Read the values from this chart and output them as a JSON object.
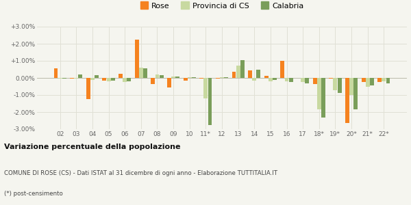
{
  "categories": [
    "02",
    "03",
    "04",
    "05",
    "06",
    "07",
    "08",
    "09",
    "10",
    "11*",
    "12",
    "13",
    "14",
    "15",
    "16",
    "17",
    "18*",
    "19*",
    "20*",
    "21*",
    "22*"
  ],
  "rose": [
    0.55,
    -0.02,
    -1.25,
    -0.15,
    0.25,
    2.25,
    -0.35,
    -0.55,
    -0.15,
    -0.05,
    -0.05,
    0.35,
    0.45,
    0.12,
    1.0,
    0.0,
    -0.35,
    -0.05,
    -2.65,
    -0.25,
    -0.25
  ],
  "provincia": [
    -0.05,
    -0.02,
    -0.1,
    -0.2,
    -0.25,
    0.62,
    0.2,
    0.1,
    0.05,
    -1.2,
    0.05,
    0.72,
    -0.15,
    -0.2,
    -0.2,
    -0.25,
    -1.82,
    -0.7,
    -1.0,
    -0.5,
    -0.2
  ],
  "calabria": [
    -0.05,
    0.2,
    0.15,
    -0.15,
    -0.2,
    0.55,
    0.15,
    0.1,
    0.05,
    -2.75,
    0.05,
    1.05,
    0.5,
    -0.1,
    -0.25,
    -0.3,
    -2.3,
    -0.88,
    -1.85,
    -0.45,
    -0.3
  ],
  "rose_color": "#f5821f",
  "provincia_color": "#c8d9a0",
  "calabria_color": "#7a9e5a",
  "bg_color": "#f5f5ef",
  "grid_color": "#e0e0d5",
  "title": "Variazione percentuale della popolazione",
  "subtitle1": "COMUNE DI ROSE (CS) - Dati ISTAT al 31 dicembre di ogni anno - Elaborazione TUTTITALIA.IT",
  "subtitle2": "(*) post-censimento",
  "legend_labels": [
    "Rose",
    "Provincia di CS",
    "Calabria"
  ],
  "ylim": [
    -3.0,
    3.0
  ],
  "yticks": [
    -3.0,
    -2.0,
    -1.0,
    0.0,
    1.0,
    2.0,
    3.0
  ],
  "ytick_labels": [
    "-3.00%",
    "-2.00%",
    "-1.00%",
    "0.00%",
    "+1.00%",
    "+2.00%",
    "+3.00%"
  ]
}
